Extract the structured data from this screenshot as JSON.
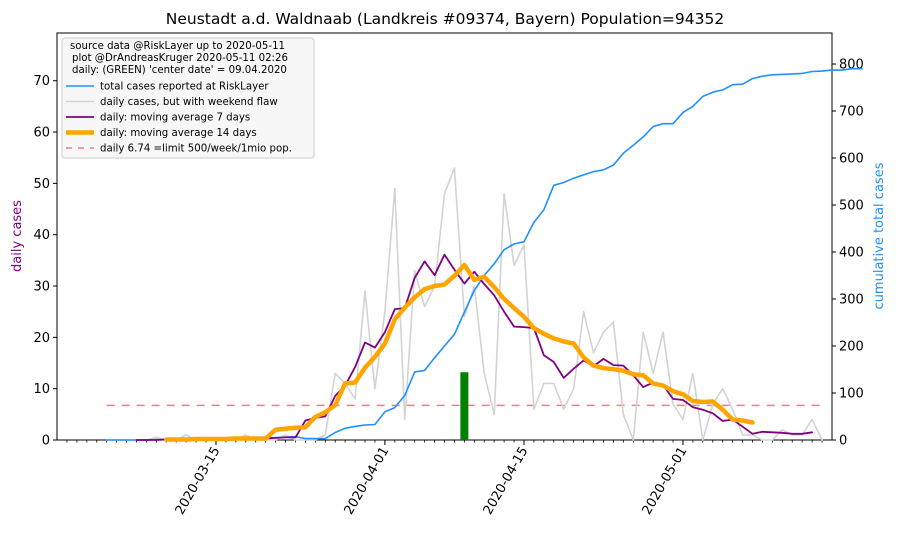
{
  "chart_data": {
    "type": "line",
    "title": "Neustadt a.d. Waldnaab (Landkreis #09374, Bayern) Population=94352",
    "ylabel_left": "daily cases",
    "ylabel_right": "cumulative total cases",
    "x_start_date": "2020-03-04",
    "xlim": [
      "2020-02-28",
      "2020-05-16"
    ],
    "ylim_left": [
      0,
      79.3
    ],
    "ylim_right": [
      0,
      866
    ],
    "yticks_left": [
      0,
      10,
      20,
      30,
      40,
      50,
      60,
      70
    ],
    "yticks_right": [
      0,
      100,
      200,
      300,
      400,
      500,
      600,
      700,
      800
    ],
    "xticks": [
      "2020-03-15",
      "2020-04-01",
      "2020-04-15",
      "2020-05-01"
    ],
    "legend_position": "top-left",
    "legend_info_lines": [
      "source data @RiskLayer up to 2020-05-11",
      "plot @DrAndreasKruger 2020-05-11 02:26",
      "daily: (GREEN) 'center date' = 09.04.2020"
    ],
    "colors": {
      "total": "#1e90ff",
      "daily": "#d3d3d3",
      "ma7": "#800080",
      "ma14": "#ffa500",
      "limit": "#f08080",
      "center": "#008000",
      "left_label": "#800080",
      "right_label": "#1e90ff"
    },
    "series": [
      {
        "key": "total",
        "name": "total cases reported at RiskLayer",
        "axis": "right",
        "values": [
          0,
          0,
          0,
          0,
          0,
          1,
          1,
          1,
          2,
          2,
          3,
          3,
          4,
          4,
          5,
          5,
          5,
          5,
          6,
          7,
          3,
          3,
          3,
          16,
          25,
          29,
          32,
          33,
          60,
          69,
          95,
          145,
          148,
          175,
          200,
          225,
          272,
          318,
          350,
          375,
          405,
          417,
          422,
          463,
          490,
          542,
          548,
          557,
          564,
          571,
          575,
          585,
          610,
          627,
          645,
          667,
          673,
          673,
          697,
          710,
          731,
          740,
          745,
          756,
          757,
          769,
          774,
          777,
          778,
          779,
          780,
          784,
          785,
          787,
          787,
          790,
          790
        ]
      },
      {
        "key": "daily",
        "name": "daily cases, but with weekend flaw",
        "axis": "left",
        "values": [
          0,
          0,
          0,
          0,
          0,
          0.5,
          0,
          0,
          1,
          0,
          0,
          0,
          0,
          0,
          1,
          0,
          0,
          0,
          1,
          0,
          0,
          0,
          1,
          13,
          11,
          8,
          29,
          10,
          25,
          49,
          4,
          33,
          26,
          30,
          48,
          53,
          24,
          30,
          13,
          5,
          48,
          34,
          38,
          6,
          11,
          11,
          6,
          10,
          25,
          17,
          21,
          23,
          5,
          0,
          21,
          13,
          21,
          7,
          4,
          13,
          0,
          7,
          10,
          6,
          1,
          1,
          0,
          0,
          2,
          1,
          1,
          4,
          0
        ]
      },
      {
        "key": "ma7",
        "name": "daily: moving average 7 days",
        "axis": "left",
        "values": [
          null,
          null,
          null,
          0,
          0,
          0,
          0.1,
          0.1,
          0.2,
          0.2,
          0.2,
          0.2,
          0.3,
          0.3,
          0.3,
          0.3,
          0.3,
          0.4,
          0.5,
          0.5,
          3.8,
          4.3,
          4.6,
          8.6,
          10.6,
          14.2,
          19,
          18,
          21,
          25.5,
          25.7,
          31.6,
          34.8,
          32.1,
          36.1,
          33.2,
          30.5,
          32.8,
          30.4,
          28.2,
          25,
          22.1,
          22,
          21.8,
          16.5,
          15.2,
          12.1,
          13.9,
          15.5,
          14.4,
          15.8,
          14.6,
          14.5,
          12.6,
          10.3,
          11.2,
          10.7,
          8,
          7.8,
          6.4,
          5.9,
          5.2,
          3.7,
          4,
          2.6,
          1.2,
          1.6,
          1.5,
          1.4,
          1.2,
          1.2,
          1.5,
          null
        ]
      },
      {
        "key": "ma14",
        "name": "daily: moving average 14 days",
        "axis": "left",
        "values": [
          null,
          null,
          null,
          null,
          null,
          null,
          0.1,
          0.1,
          0.1,
          0.2,
          0.2,
          0.2,
          0.2,
          0.3,
          0.3,
          0.3,
          0.3,
          2,
          2.2,
          2.4,
          2.5,
          4.5,
          5.4,
          6.8,
          11,
          11.2,
          14.1,
          16.2,
          18.8,
          23.5,
          25.8,
          27.8,
          29.4,
          30,
          30.3,
          32,
          34.1,
          31.2,
          31.8,
          29.8,
          27.5,
          25.7,
          24,
          21.8,
          20.7,
          19.8,
          19.2,
          18.8,
          16.1,
          14.5,
          14,
          13.8,
          13.5,
          12.8,
          12.6,
          11,
          10.6,
          9.5,
          8.9,
          7.6,
          7.4,
          7.5,
          5.9,
          4,
          3.8,
          3.4,
          null,
          null,
          null,
          null,
          null,
          null,
          null
        ]
      },
      {
        "key": "limit",
        "name": "daily 6.74 =limit 500/week/1mio pop.",
        "axis": "left",
        "constant": 6.74,
        "x_range": [
          0,
          72
        ]
      }
    ],
    "center_bar": {
      "date": "2020-04-09",
      "value": 13.2
    }
  }
}
